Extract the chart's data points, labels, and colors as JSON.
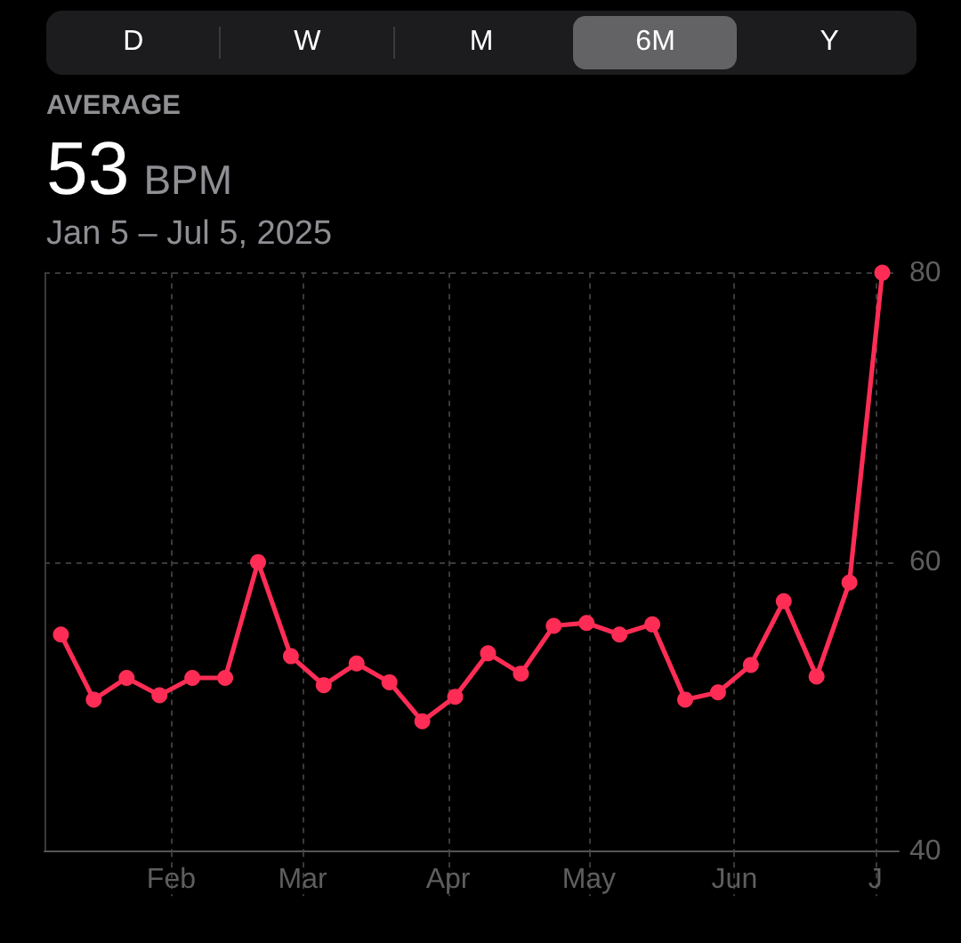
{
  "chart_data": {
    "type": "line",
    "title": "AVERAGE",
    "subtitle": "Jan 5 – Jul 5, 2025",
    "annotations": [
      "D",
      "W",
      "M",
      "6M",
      "Y",
      "53 BPM"
    ],
    "x": [
      "2025-01-08T12:00",
      "2025-01-15T12:00",
      "2025-01-22T12:00",
      "2025-01-29T12:00",
      "2025-02-05T12:00",
      "2025-02-12T12:00",
      "2025-02-19T12:00",
      "2025-02-26T12:00",
      "2025-03-05T12:00",
      "2025-03-12T12:00",
      "2025-03-19T12:00",
      "2025-03-26T12:00",
      "2025-04-02T12:00",
      "2025-04-09T12:00",
      "2025-04-16T12:00",
      "2025-04-23T12:00",
      "2025-04-30T12:00",
      "2025-05-07T12:00",
      "2025-05-14T12:00",
      "2025-05-21T12:00",
      "2025-05-28T12:00",
      "2025-06-04T12:00",
      "2025-06-11T12:00",
      "2025-06-18T12:00",
      "2025-06-25T12:00",
      "2025-07-02T12:00"
    ],
    "series": [
      {
        "color": "#ff2d55",
        "values": [
          55.0,
          50.5,
          52.0,
          50.8,
          52.0,
          52.0,
          60.0,
          53.5,
          51.5,
          53.0,
          51.7,
          49.0,
          50.7,
          53.7,
          52.3,
          55.6,
          55.8,
          55.0,
          55.7,
          50.5,
          51.0,
          52.9,
          57.3,
          52.1,
          58.6,
          80.0
        ]
      }
    ],
    "xlim": [
      "2025-01-05",
      "2025-07-06"
    ],
    "xticks": [
      {
        "value": "2025-02-01",
        "label": "Feb"
      },
      {
        "value": "2025-03-01",
        "label": "Mar"
      },
      {
        "value": "2025-04-01",
        "label": "Apr"
      },
      {
        "value": "2025-05-01",
        "label": "May"
      },
      {
        "value": "2025-06-01",
        "label": "Jun"
      },
      {
        "value": "2025-07-01",
        "label": "J"
      }
    ],
    "ylim": [
      40,
      80
    ],
    "yticks": [
      40,
      60,
      80
    ],
    "grid": true,
    "marker": "circle",
    "line_style": "solid"
  }
}
